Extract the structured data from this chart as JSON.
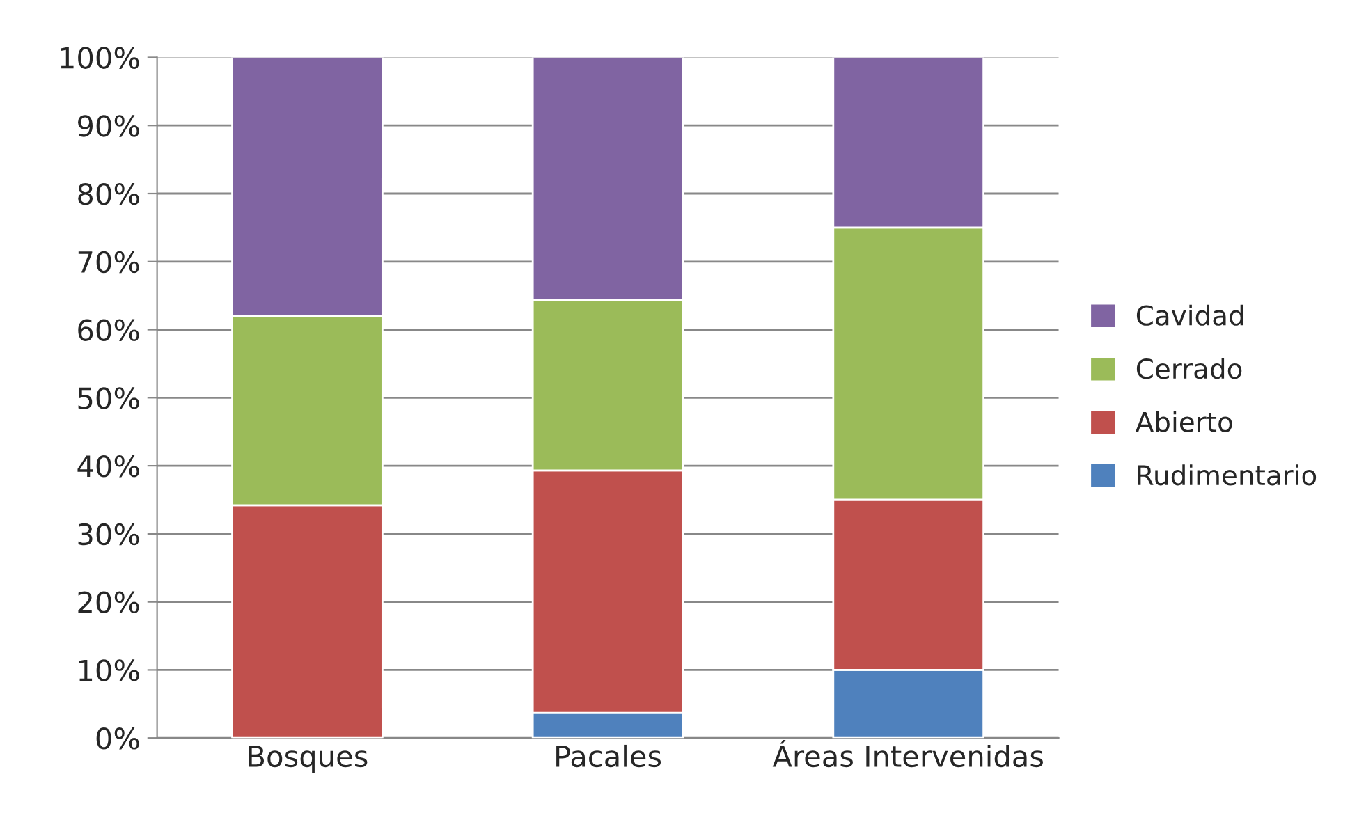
{
  "chart_data": {
    "type": "bar",
    "stacked": true,
    "categories": [
      "Bosques",
      "Pacales",
      "Áreas Intervenidas"
    ],
    "series": [
      {
        "name": "Rudimentario",
        "color": "#4f81bd",
        "values": [
          0,
          3.7,
          10.0
        ]
      },
      {
        "name": "Abierto",
        "color": "#c0504d",
        "values": [
          34.2,
          35.6,
          25.0
        ]
      },
      {
        "name": "Cerrado",
        "color": "#9bbb59",
        "values": [
          27.8,
          25.1,
          40.0
        ]
      },
      {
        "name": "Cavidad",
        "color": "#8064a2",
        "values": [
          38.0,
          35.6,
          25.0
        ]
      }
    ],
    "ylim": [
      0,
      100
    ],
    "yticks": [
      {
        "value": 0,
        "label": "0%"
      },
      {
        "value": 10,
        "label": "10%"
      },
      {
        "value": 20,
        "label": "20%"
      },
      {
        "value": 30,
        "label": "30%"
      },
      {
        "value": 40,
        "label": "40%"
      },
      {
        "value": 50,
        "label": "50%"
      },
      {
        "value": 60,
        "label": "60%"
      },
      {
        "value": 70,
        "label": "70%"
      },
      {
        "value": 80,
        "label": "80%"
      },
      {
        "value": 90,
        "label": "90%"
      },
      {
        "value": 100,
        "label": "100%"
      }
    ],
    "grid": "y",
    "legend": "right"
  }
}
